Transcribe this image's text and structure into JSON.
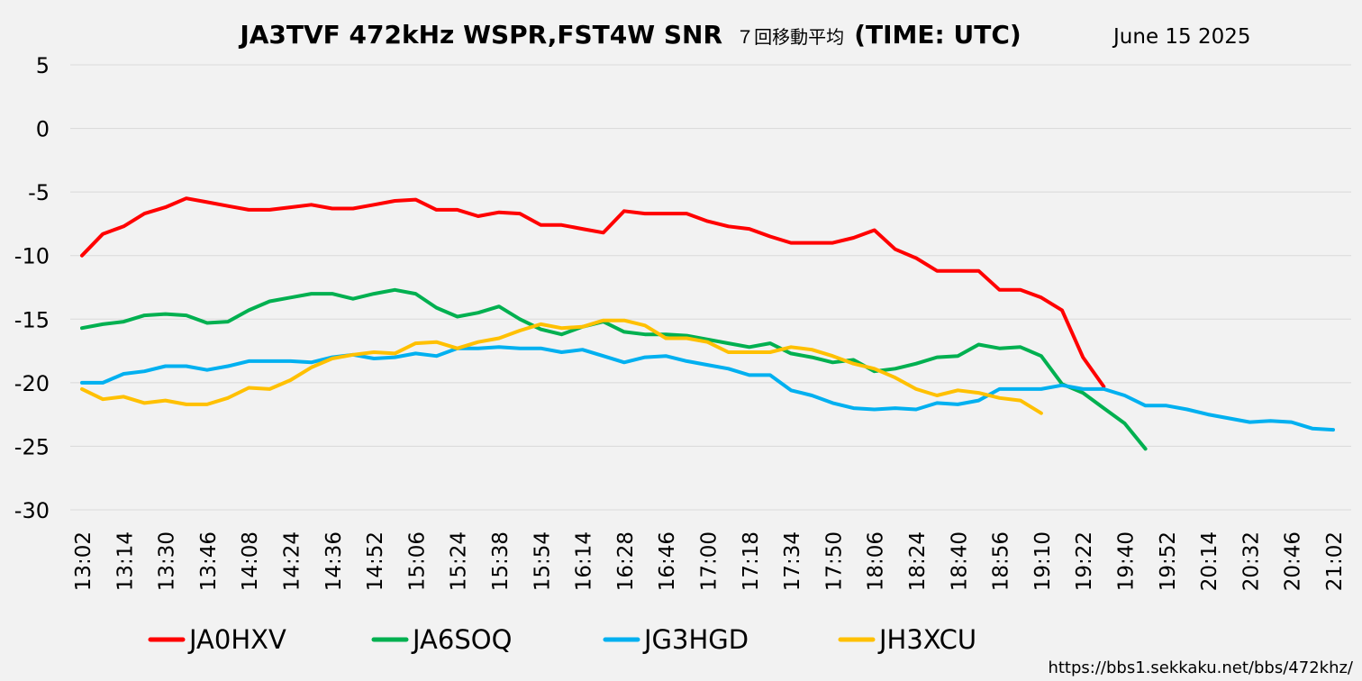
{
  "chart_data": {
    "type": "line",
    "title": "JA3TVF 472kHz WSPR,FST4W SNR",
    "title_suffix": "７回移動平均",
    "title_tail": "(TIME: UTC)",
    "date": "June 15 2025",
    "url": "https://bbs1.sekkaku.net/bbs/472khz/",
    "xlabel": "",
    "ylabel": "",
    "ylim": [
      -30,
      5
    ],
    "yticks": [
      5,
      0,
      -5,
      -10,
      -15,
      -20,
      -25,
      -30
    ],
    "grid": true,
    "legend_position": "bottom",
    "x_tick_labels": [
      "13:02",
      "13:14",
      "13:30",
      "13:46",
      "14:08",
      "14:24",
      "14:36",
      "14:52",
      "15:06",
      "15:24",
      "15:38",
      "15:54",
      "16:14",
      "16:28",
      "16:46",
      "17:00",
      "17:18",
      "17:34",
      "17:50",
      "18:06",
      "18:24",
      "18:40",
      "18:56",
      "19:10",
      "19:22",
      "19:40",
      "19:52",
      "20:14",
      "20:32",
      "20:46",
      "21:02"
    ],
    "series": [
      {
        "name": "JA0HXV",
        "color": "#ff0000",
        "values": [
          -10,
          -8.3,
          -7.7,
          -6.7,
          -6.2,
          -5.5,
          -5.8,
          -6.1,
          -6.4,
          -6.4,
          -6.2,
          -6.0,
          -6.3,
          -6.3,
          -6.0,
          -5.7,
          -5.6,
          -6.4,
          -6.4,
          -6.9,
          -6.6,
          -6.7,
          -7.6,
          -7.6,
          -7.9,
          -8.2,
          -6.5,
          -6.7,
          -6.7,
          -6.7,
          -7.3,
          -7.7,
          -7.9,
          -8.5,
          -9.0,
          -9.0,
          -9.0,
          -8.6,
          -8.0,
          -9.5,
          -10.2,
          -11.2,
          -11.2,
          -11.2,
          -12.7,
          -12.7,
          -13.3,
          -14.3,
          -18.0,
          -20.3
        ]
      },
      {
        "name": "JA6SOQ",
        "color": "#00b050",
        "values": [
          -15.7,
          -15.4,
          -15.2,
          -14.7,
          -14.6,
          -14.7,
          -15.3,
          -15.2,
          -14.3,
          -13.6,
          -13.3,
          -13.0,
          -13.0,
          -13.4,
          -13.0,
          -12.7,
          -13.0,
          -14.1,
          -14.8,
          -14.5,
          -14.0,
          -15.0,
          -15.8,
          -16.2,
          -15.6,
          -15.2,
          -16.0,
          -16.2,
          -16.2,
          -16.3,
          -16.6,
          -16.9,
          -17.2,
          -16.9,
          -17.7,
          -18.0,
          -18.4,
          -18.2,
          -19.1,
          -18.9,
          -18.5,
          -18.0,
          -17.9,
          -17.0,
          -17.3,
          -17.2,
          -17.9,
          -20.1,
          -20.8,
          -22.0,
          -23.2,
          -25.2
        ]
      },
      {
        "name": "JG3HGD",
        "color": "#00b0f0",
        "values": [
          -20.0,
          -20.0,
          -19.3,
          -19.1,
          -18.7,
          -18.7,
          -19.0,
          -18.7,
          -18.3,
          -18.3,
          -18.3,
          -18.4,
          -18.0,
          -17.8,
          -18.1,
          -18.0,
          -17.7,
          -17.9,
          -17.3,
          -17.3,
          -17.2,
          -17.3,
          -17.3,
          -17.6,
          -17.4,
          -17.9,
          -18.4,
          -18.0,
          -17.9,
          -18.3,
          -18.6,
          -18.9,
          -19.4,
          -19.4,
          -20.6,
          -21.0,
          -21.6,
          -22.0,
          -22.1,
          -22.0,
          -22.1,
          -21.6,
          -21.7,
          -21.4,
          -20.5,
          -20.5,
          -20.5,
          -20.2,
          -20.5,
          -20.5,
          -21.0,
          -21.8,
          -21.8,
          -22.1,
          -22.5,
          -22.8,
          -23.1,
          -23.0,
          -23.1,
          -23.6,
          -23.7
        ]
      },
      {
        "name": "JH3XCU",
        "color": "#ffc000",
        "values": [
          -20.5,
          -21.3,
          -21.1,
          -21.6,
          -21.4,
          -21.7,
          -21.7,
          -21.2,
          -20.4,
          -20.5,
          -19.8,
          -18.8,
          -18.1,
          -17.8,
          -17.6,
          -17.7,
          -16.9,
          -16.8,
          -17.3,
          -16.8,
          -16.5,
          -15.9,
          -15.4,
          -15.7,
          -15.6,
          -15.1,
          -15.1,
          -15.5,
          -16.5,
          -16.5,
          -16.8,
          -17.6,
          -17.6,
          -17.6,
          -17.2,
          -17.4,
          -17.9,
          -18.5,
          -18.9,
          -19.6,
          -20.5,
          -21.0,
          -20.6,
          -20.8,
          -21.2,
          -21.4,
          -22.4
        ]
      }
    ]
  }
}
